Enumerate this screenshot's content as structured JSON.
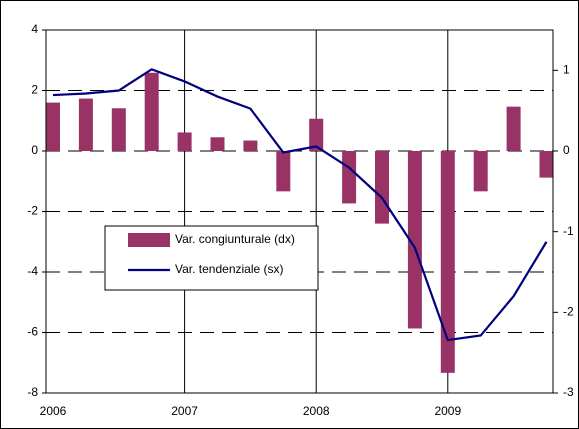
{
  "chart_data": {
    "type": "combo",
    "categories": [
      "2006",
      null,
      null,
      null,
      "2007",
      null,
      null,
      null,
      "2008",
      null,
      null,
      null,
      "2009",
      null,
      null,
      null
    ],
    "series": [
      {
        "name": "Var. congiunturale (dx)",
        "type": "bar",
        "axis": "y2",
        "color": "#993366",
        "values": [
          0.6,
          0.65,
          0.53,
          0.97,
          0.23,
          0.17,
          0.13,
          -0.5,
          0.4,
          -0.65,
          -0.9,
          -2.2,
          -2.75,
          -0.5,
          0.55,
          -0.33
        ]
      },
      {
        "name": "Var. tendenziale (sx)",
        "type": "line",
        "axis": "y",
        "color": "#000080",
        "values": [
          1.85,
          1.9,
          2.0,
          2.7,
          2.3,
          1.8,
          1.4,
          -0.05,
          0.15,
          -0.55,
          -1.55,
          -3.2,
          -6.25,
          -6.1,
          -4.8,
          -3.0
        ]
      }
    ],
    "ylim": [
      -8,
      4
    ],
    "yticks": [
      -8,
      -6,
      -4,
      -2,
      0,
      2,
      4
    ],
    "y2lim": [
      -3,
      1.5
    ],
    "y2ticks": [
      -3,
      -2,
      -1,
      0,
      1
    ],
    "grid": true
  }
}
